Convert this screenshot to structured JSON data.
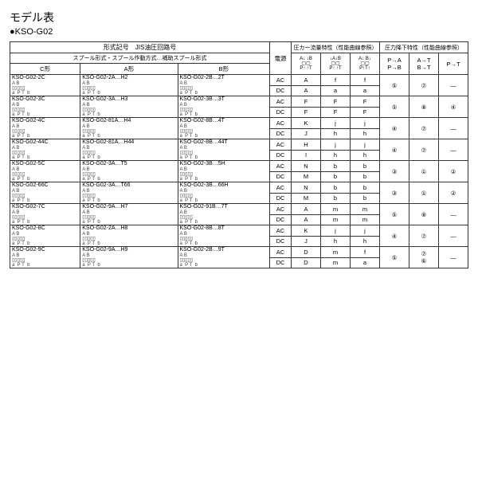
{
  "title": "モデル表",
  "subtitle": "●KSO-G02",
  "headers": {
    "model_jis": "形式記号　JIS油圧回路号",
    "spool": "スプール形式・スプール作動方式…補助スプール形式",
    "c_type": "C形",
    "a_type": "A形",
    "b_type": "B形",
    "power": "電源",
    "pressure_flow": "圧カー流量特性（性能曲線参照）",
    "pressure_drop": "圧力降下特性（性能曲線参照）",
    "pa": "P→A",
    "pb": "P→B",
    "at": "A→T",
    "bt": "B→T",
    "pt": "P→T",
    "ac": "AC",
    "dc": "DC"
  },
  "letters": {
    "a": "a",
    "b": "b",
    "f": "f",
    "h": "h",
    "j": "j",
    "m": "m",
    "A": "A",
    "D": "D",
    "F": "F",
    "H": "H",
    "I": "I",
    "J": "J",
    "K": "K",
    "M": "M",
    "N": "N"
  },
  "circles": {
    "1": "①",
    "2": "②",
    "3": "③",
    "4": "④",
    "5": "⑤",
    "6": "⑥",
    "7": "⑦",
    "8": "⑧"
  },
  "dash": "—",
  "models": {
    "r1": {
      "c": "KSO-G02-2C",
      "a": "KSO-G02-2A…H2",
      "b": "KSO-G02-2B…2T"
    },
    "r2": {
      "c": "KSO-G02-3C",
      "a": "KSO-G02-3A…H3",
      "b": "KSO-G02-3B…3T"
    },
    "r3": {
      "c": "KSO-G02-4C",
      "a": "KSO-G02-81A…H4",
      "b": "KSO-G02-8B…4T"
    },
    "r4": {
      "c": "KSO-G02-44C",
      "a": "KSO-G02-81A…H44",
      "b": "KSO-G02-8B…44T"
    },
    "r5": {
      "c": "KSO-G02-5C",
      "a": "KSO-G02-3A…T5",
      "b": "KSO-G02-3B…5H"
    },
    "r6": {
      "c": "KSO-G02-66C",
      "a": "KSO-G02-3A…T66",
      "b": "KSO-G02-3B…66H"
    },
    "r7": {
      "c": "KSO-G02-7C",
      "a": "KSO-G02-9A…H7",
      "b": "KSO-G02-91B…7T"
    },
    "r8": {
      "c": "KSO-G02-8C",
      "a": "KSO-G02-2A…H8",
      "b": "KSO-G02-8B…8T"
    },
    "r9": {
      "c": "KSO-G02-9C",
      "a": "KSO-G02-9A…H9",
      "b": "KSO-G02-2B…9T"
    }
  },
  "diag": "A B\n▯▯▯\na P T b"
}
